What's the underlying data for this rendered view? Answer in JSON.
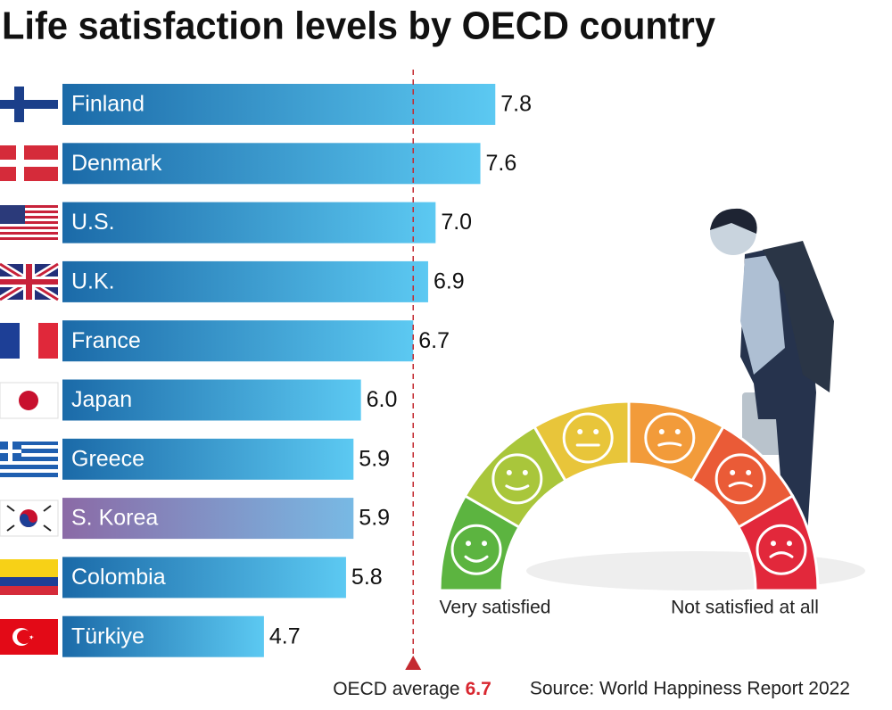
{
  "chart_data": {
    "type": "hbar",
    "title": "Life satisfaction levels by OECD country",
    "categories": [
      "Finland",
      "Denmark",
      "U.S.",
      "U.K.",
      "France",
      "Japan",
      "Greece",
      "S. Korea",
      "Colombia",
      "Türkiye"
    ],
    "values": [
      7.8,
      7.6,
      7.0,
      6.9,
      6.7,
      6.0,
      5.9,
      5.9,
      5.8,
      4.7
    ],
    "value_labels": [
      "7.8",
      "7.6",
      "7.0",
      "6.9",
      "6.7",
      "6.0",
      "5.9",
      "5.9",
      "5.8",
      "4.7"
    ],
    "xlim": [
      2,
      8
    ],
    "highlight": "S. Korea",
    "reference": {
      "label": "OECD average",
      "value": 6.7
    },
    "gauge_labels": [
      "Very satisfied",
      "Not satisfied at all"
    ],
    "source": "Source: World Happiness Report 2022"
  }
}
